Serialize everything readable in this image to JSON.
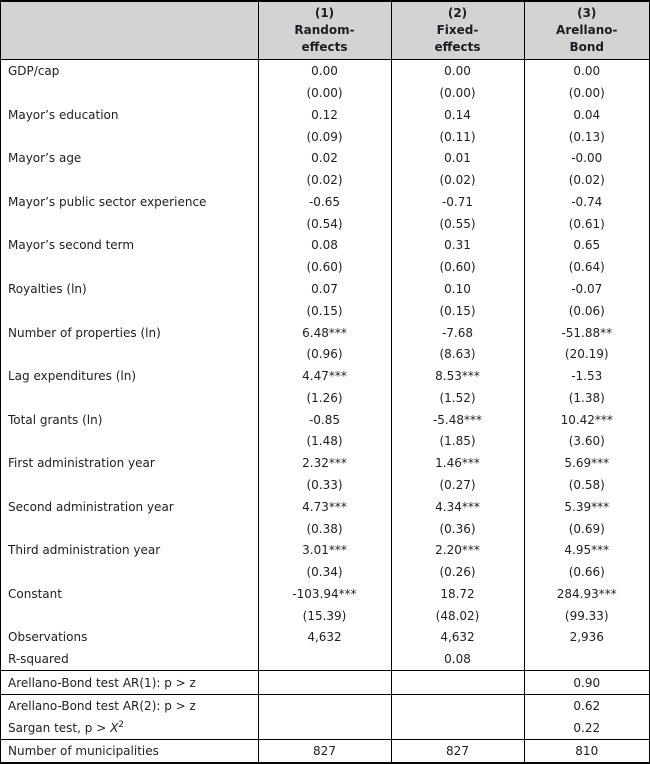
{
  "colors": {
    "header_bg": "#d3d3d3",
    "border": "#000000",
    "text": "#1d1d26"
  },
  "header": {
    "label_col": "",
    "cols": [
      {
        "num": "(1)",
        "line2": "Random-",
        "line3": "effects"
      },
      {
        "num": "(2)",
        "line2": "Fixed-",
        "line3": "effects"
      },
      {
        "num": "(3)",
        "line2": "Arellano-",
        "line3": "Bond"
      }
    ]
  },
  "coefficients": [
    {
      "label": "GDP/cap",
      "c": [
        "0.00",
        "0.00",
        "0.00"
      ],
      "se": [
        "(0.00)",
        "(0.00)",
        "(0.00)"
      ]
    },
    {
      "label": "Mayor’s education",
      "c": [
        "0.12",
        "0.14",
        "0.04"
      ],
      "se": [
        "(0.09)",
        "(0.11)",
        "(0.13)"
      ]
    },
    {
      "label": "Mayor’s age",
      "c": [
        "0.02",
        "0.01",
        "-0.00"
      ],
      "se": [
        "(0.02)",
        "(0.02)",
        "(0.02)"
      ]
    },
    {
      "label": "Mayor’s public sector experience",
      "c": [
        "-0.65",
        "-0.71",
        "-0.74"
      ],
      "se": [
        "(0.54)",
        "(0.55)",
        "(0.61)"
      ]
    },
    {
      "label": "Mayor’s second term",
      "c": [
        "0.08",
        "0.31",
        "0.65"
      ],
      "se": [
        "(0.60)",
        "(0.60)",
        "(0.64)"
      ]
    },
    {
      "label": "Royalties (ln)",
      "c": [
        "0.07",
        "0.10",
        "-0.07"
      ],
      "se": [
        "(0.15)",
        "(0.15)",
        "(0.06)"
      ]
    },
    {
      "label": "Number of properties (ln)",
      "c": [
        "6.48***",
        "-7.68",
        "-51.88**"
      ],
      "se": [
        "(0.96)",
        "(8.63)",
        "(20.19)"
      ]
    },
    {
      "label": "Lag expenditures (ln)",
      "c": [
        "4.47***",
        "8.53***",
        "-1.53"
      ],
      "se": [
        "(1.26)",
        "(1.52)",
        "(1.38)"
      ]
    },
    {
      "label": "Total grants (ln)",
      "c": [
        "-0.85",
        "-5.48***",
        "10.42***"
      ],
      "se": [
        "(1.48)",
        "(1.85)",
        "(3.60)"
      ]
    },
    {
      "label": "First administration year",
      "c": [
        "2.32***",
        "1.46***",
        "5.69***"
      ],
      "se": [
        "(0.33)",
        "(0.27)",
        "(0.58)"
      ]
    },
    {
      "label": "Second administration year",
      "c": [
        "4.73***",
        "4.34***",
        "5.39***"
      ],
      "se": [
        "(0.38)",
        "(0.36)",
        "(0.69)"
      ]
    },
    {
      "label": "Third administration year",
      "c": [
        "3.01***",
        "2.20***",
        "4.95***"
      ],
      "se": [
        "(0.34)",
        "(0.26)",
        "(0.66)"
      ]
    },
    {
      "label": "Constant",
      "c": [
        "-103.94***",
        "18.72",
        "284.93***"
      ],
      "se": [
        "(15.39)",
        "(48.02)",
        "(99.33)"
      ]
    }
  ],
  "stats": {
    "observations": {
      "label": "Observations",
      "v": [
        "4,632",
        "4,632",
        "2,936"
      ]
    },
    "r_squared": {
      "label": "R-squared",
      "v": [
        "",
        "0.08",
        ""
      ]
    }
  },
  "tests": {
    "ar1": {
      "label": "Arellano-Bond test AR(1): p > z",
      "v": [
        "",
        "",
        "0.90"
      ]
    },
    "ar2": {
      "label": "Arellano-Bond test AR(2): p > z",
      "v": [
        "",
        "",
        "0.62"
      ]
    },
    "sargan": {
      "prefix": "Sargan test, p > ",
      "var": "X",
      "sup": "2",
      "v": [
        "",
        "",
        "0.22"
      ]
    },
    "municipalities": {
      "label": "Number of municipalities",
      "v": [
        "827",
        "827",
        "810"
      ]
    }
  }
}
